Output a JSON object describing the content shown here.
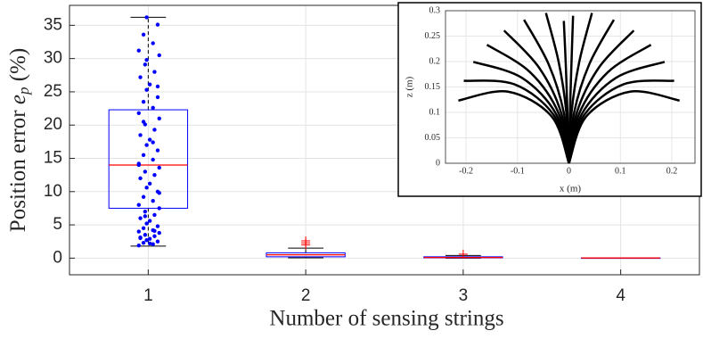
{
  "chart_data": [
    {
      "type": "box",
      "x_label": "Number of sensing strings",
      "y_label": "Position error",
      "y_label_symbol": "e",
      "y_label_subscript": "p",
      "y_label_unit": "(%)",
      "categories": [
        "1",
        "2",
        "3",
        "4"
      ],
      "xlim": [
        0.5,
        4.5
      ],
      "ylim": [
        -2.5,
        38
      ],
      "yticks": [
        0,
        5,
        10,
        15,
        20,
        25,
        30,
        35
      ],
      "grid": true,
      "box_color": "#0000ff",
      "median_color": "#ff0000",
      "whisker_color": "#000000",
      "flier_color": "#ff0000",
      "boxes": [
        {
          "whislo": 1.8,
          "q1": 7.5,
          "med": 14,
          "q3": 22.3,
          "whishi": 36.2,
          "fliers": []
        },
        {
          "whislo": 0.05,
          "q1": 0.2,
          "med": 0.5,
          "q3": 0.8,
          "whishi": 1.5,
          "fliers": [
            2.0,
            2.3,
            2.6
          ]
        },
        {
          "whislo": 0,
          "q1": 0.05,
          "med": 0.1,
          "q3": 0.2,
          "whishi": 0.4,
          "fliers": [
            0.6
          ]
        },
        {
          "whislo": 0,
          "q1": 0.01,
          "med": 0.02,
          "q3": 0.03,
          "whishi": 0.05,
          "fliers": []
        }
      ],
      "points": {
        "color": "#0000ff",
        "x": [
          0.94,
          1.03,
          0.97,
          1.06,
          0.99,
          1.01,
          0.95,
          1.04,
          0.98,
          1.07,
          0.94,
          1.03,
          0.97,
          1.06,
          0.99,
          1.01,
          0.95,
          1.04,
          0.98,
          1.07,
          0.94,
          1.03,
          0.97,
          1.06,
          0.99,
          1.01,
          0.95,
          1.04,
          0.98,
          1.07,
          0.94,
          1.03,
          0.97,
          1.06,
          0.99,
          1.01,
          0.95,
          1.04,
          0.98,
          1.07,
          0.94,
          1.03,
          0.97,
          1.06,
          0.99,
          1.01,
          0.95,
          1.04,
          0.98,
          1.07,
          0.94,
          1.03,
          0.97,
          1.06,
          0.99,
          1.01,
          0.95,
          1.04,
          0.98,
          1.07,
          0.94,
          1.03,
          0.97,
          1.06,
          0.99
        ],
        "values": [
          1.9,
          2.1,
          2.3,
          2.5,
          2.7,
          2.9,
          3.1,
          3.3,
          3.5,
          3.8,
          4.0,
          4.2,
          4.5,
          4.8,
          5.2,
          5.6,
          6.0,
          6.5,
          7.0,
          7.5,
          8.0,
          8.6,
          9.2,
          10.0,
          10.6,
          11.2,
          12.0,
          12.5,
          13.0,
          13.6,
          14.2,
          14.8,
          15.5,
          16.2,
          17.0,
          17.8,
          18.5,
          19.3,
          20.1,
          21.0,
          21.8,
          22.6,
          23.5,
          24.2,
          25.3,
          26.1,
          27.2,
          28.0,
          29.1,
          30.5,
          31.2,
          32.3,
          33.6,
          35.1,
          36.2,
          2.2,
          3.0,
          4.1,
          6.3,
          9.8,
          14.0,
          17.4,
          20.5,
          25.8,
          29.8
        ]
      }
    },
    {
      "type": "line",
      "x_label": "x (m)",
      "y_label": "z (m)",
      "xlim": [
        -0.24,
        0.245
      ],
      "ylim": [
        0,
        0.3
      ],
      "xticks": [
        -0.2,
        -0.1,
        0,
        0.1,
        0.2
      ],
      "yticks": [
        0,
        0.05,
        0.1,
        0.15,
        0.2,
        0.25,
        0.3
      ],
      "grid": true,
      "color": "#000000",
      "series": [
        {
          "x": [
            0,
            0.002,
            0.005,
            0.008
          ],
          "values": [
            0,
            0.1,
            0.2,
            0.29
          ]
        },
        {
          "x": [
            0,
            0.005,
            0.0199,
            0.0447
          ],
          "values": [
            0,
            0.0998,
            0.1987,
            0.2955
          ]
        },
        {
          "x": [
            0,
            0.00995,
            0.0395,
            0.0873
          ],
          "values": [
            0,
            0.0993,
            0.1947,
            0.2823
          ]
        },
        {
          "x": [
            0,
            0.0149,
            0.0582,
            0.1261
          ],
          "values": [
            0,
            0.0985,
            0.1882,
            0.2611
          ]
        },
        {
          "x": [
            0,
            0.0197,
            0.0758,
            0.1594
          ],
          "values": [
            0,
            0.0974,
            0.1793,
            0.233
          ]
        },
        {
          "x": [
            0,
            0.0245,
            0.0919,
            0.1859
          ],
          "values": [
            0,
            0.0959,
            0.1683,
            0.1995
          ]
        },
        {
          "x": [
            0,
            0.0291,
            0.1063,
            0.2045
          ],
          "values": [
            0,
            0.0941,
            0.1553,
            0.1623
          ]
        },
        {
          "x": [
            0,
            0.0336,
            0.1186,
            0.215
          ],
          "values": [
            0,
            0.092,
            0.1408,
            0.1233
          ]
        },
        {
          "x": [
            0,
            -0.003,
            -0.006,
            -0.01
          ],
          "values": [
            0,
            0.1,
            0.19,
            0.28
          ]
        },
        {
          "x": [
            0,
            -0.005,
            -0.0199,
            -0.0447
          ],
          "values": [
            0,
            0.0998,
            0.1987,
            0.2955
          ]
        },
        {
          "x": [
            0,
            -0.00995,
            -0.0395,
            -0.0873
          ],
          "values": [
            0,
            0.0993,
            0.1947,
            0.2823
          ]
        },
        {
          "x": [
            0,
            -0.0149,
            -0.0582,
            -0.1261
          ],
          "values": [
            0,
            0.0985,
            0.1882,
            0.2611
          ]
        },
        {
          "x": [
            0,
            -0.0197,
            -0.0758,
            -0.1594
          ],
          "values": [
            0,
            0.0974,
            0.1793,
            0.233
          ]
        },
        {
          "x": [
            0,
            -0.0245,
            -0.0919,
            -0.1859
          ],
          "values": [
            0,
            0.0959,
            0.1683,
            0.1995
          ]
        },
        {
          "x": [
            0,
            -0.0291,
            -0.1063,
            -0.2045
          ],
          "values": [
            0,
            0.0941,
            0.1553,
            0.1623
          ]
        },
        {
          "x": [
            0,
            -0.0336,
            -0.1186,
            -0.215
          ],
          "values": [
            0,
            0.092,
            0.1408,
            0.1233
          ]
        }
      ]
    }
  ]
}
